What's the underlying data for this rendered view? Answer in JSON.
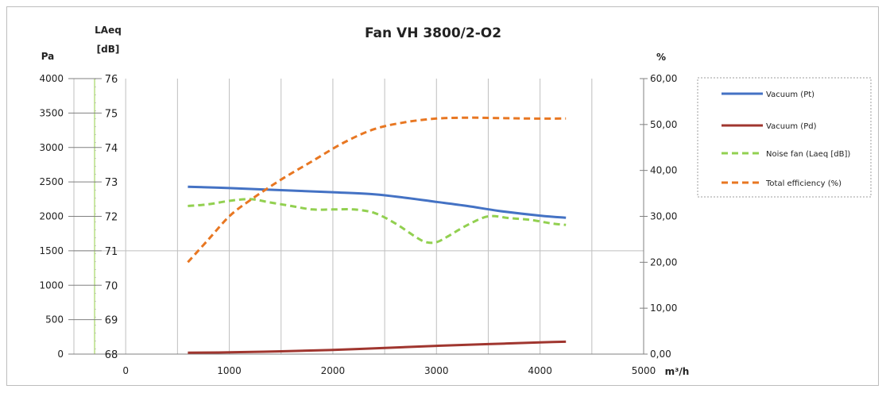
{
  "chart_data": {
    "type": "line",
    "title": "Fan VH 3800/2-O2",
    "xlabel": "m³/h",
    "x_ticks": [
      "0",
      "1000",
      "2000",
      "3000",
      "4000",
      "5000"
    ],
    "xlim": [
      -500,
      5000
    ],
    "axes": {
      "pa": {
        "label": "Pa",
        "ticks": [
          "0",
          "500",
          "1000",
          "1500",
          "2000",
          "2500",
          "3000",
          "3500",
          "4000"
        ],
        "range": [
          0,
          4000
        ]
      },
      "laeq": {
        "label_line1": "LAeq",
        "label_line2": "[dB]",
        "ticks": [
          "68",
          "69",
          "70",
          "71",
          "72",
          "73",
          "74",
          "75",
          "76"
        ],
        "range": [
          68,
          76
        ]
      },
      "pct": {
        "label": "%",
        "ticks": [
          "0,00",
          "10,00",
          "20,00",
          "30,00",
          "40,00",
          "50,00",
          "60,00"
        ],
        "range": [
          0,
          60
        ]
      }
    },
    "grid": true,
    "legend_position": "right",
    "series": [
      {
        "name": "Vacuum (Pt)",
        "axis": "pa",
        "color": "#4472c4",
        "dashed": false,
        "x": [
          600,
          1000,
          1500,
          2000,
          2400,
          2700,
          3000,
          3300,
          3600,
          4000,
          4250
        ],
        "y": [
          2430,
          2410,
          2380,
          2350,
          2320,
          2270,
          2210,
          2150,
          2080,
          2010,
          1980
        ]
      },
      {
        "name": "Vacuum (Pd)",
        "axis": "pa",
        "color": "#a0362f",
        "dashed": false,
        "x": [
          600,
          1000,
          1500,
          2000,
          2500,
          3000,
          3500,
          4000,
          4250
        ],
        "y": [
          20,
          25,
          40,
          60,
          90,
          120,
          145,
          170,
          180
        ]
      },
      {
        "name": "Noise fan (Laeq [dB])",
        "axis": "laeq",
        "color": "#92d050",
        "dashed": true,
        "x": [
          600,
          800,
          1000,
          1200,
          1400,
          1600,
          1800,
          2000,
          2200,
          2400,
          2600,
          2800,
          2900,
          3000,
          3100,
          3300,
          3500,
          3700,
          3900,
          4100,
          4250
        ],
        "y": [
          72.3,
          72.35,
          72.45,
          72.5,
          72.4,
          72.3,
          72.2,
          72.2,
          72.2,
          72.1,
          71.8,
          71.4,
          71.25,
          71.25,
          71.4,
          71.75,
          72.0,
          71.95,
          71.9,
          71.8,
          71.75
        ]
      },
      {
        "name": "Total efficiency (%)",
        "axis": "pct",
        "color": "#e87722",
        "dashed": true,
        "x": [
          600,
          800,
          1000,
          1200,
          1500,
          1800,
          2100,
          2400,
          2700,
          3000,
          3300,
          3600,
          3900,
          4250
        ],
        "y": [
          20,
          25,
          30,
          33.5,
          38,
          42,
          46,
          49,
          50.5,
          51.3,
          51.5,
          51.4,
          51.3,
          51.3
        ]
      }
    ]
  }
}
